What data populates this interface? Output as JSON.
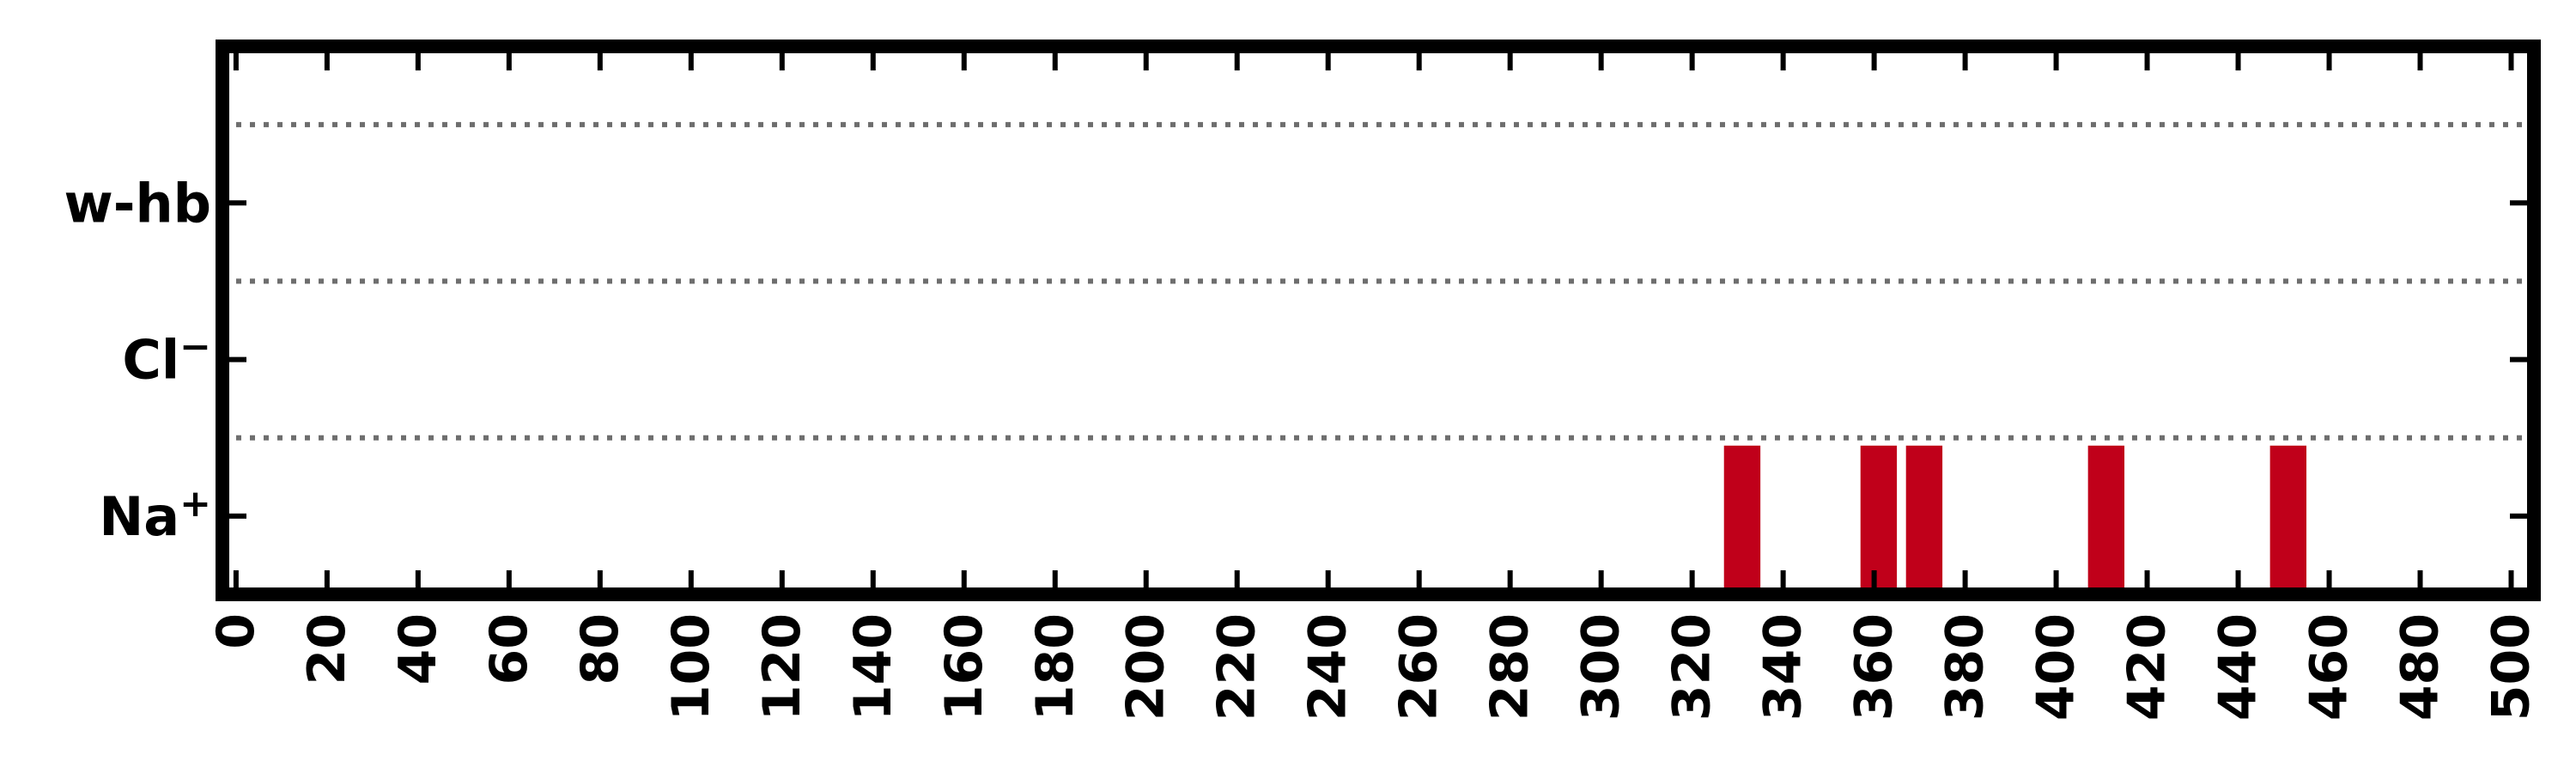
{
  "chart_data": {
    "type": "bar",
    "title": "",
    "xlabel": "",
    "ylabel": "",
    "xlim": [
      -3,
      505
    ],
    "x_ticks": [
      "0",
      "20",
      "40",
      "60",
      "80",
      "100",
      "120",
      "140",
      "160",
      "180",
      "200",
      "220",
      "240",
      "260",
      "280",
      "300",
      "320",
      "340",
      "360",
      "380",
      "400",
      "420",
      "440",
      "460",
      "480",
      "500"
    ],
    "y_categories": [
      {
        "id": "na",
        "label": "Na",
        "sup": "+"
      },
      {
        "id": "cl",
        "label": "Cl",
        "sup": "−"
      },
      {
        "id": "whb",
        "label": "w-hb",
        "sup": ""
      }
    ],
    "grid": "horizontal dotted",
    "legend": "none",
    "bar_color": "#c0001a",
    "bars": [
      {
        "category": "Na",
        "x_start": 327,
        "x_end": 335
      },
      {
        "category": "Na",
        "x_start": 357,
        "x_end": 365
      },
      {
        "category": "Na",
        "x_start": 367,
        "x_end": 375
      },
      {
        "category": "Na",
        "x_start": 407,
        "x_end": 415
      },
      {
        "category": "Na",
        "x_start": 447,
        "x_end": 455
      }
    ]
  }
}
